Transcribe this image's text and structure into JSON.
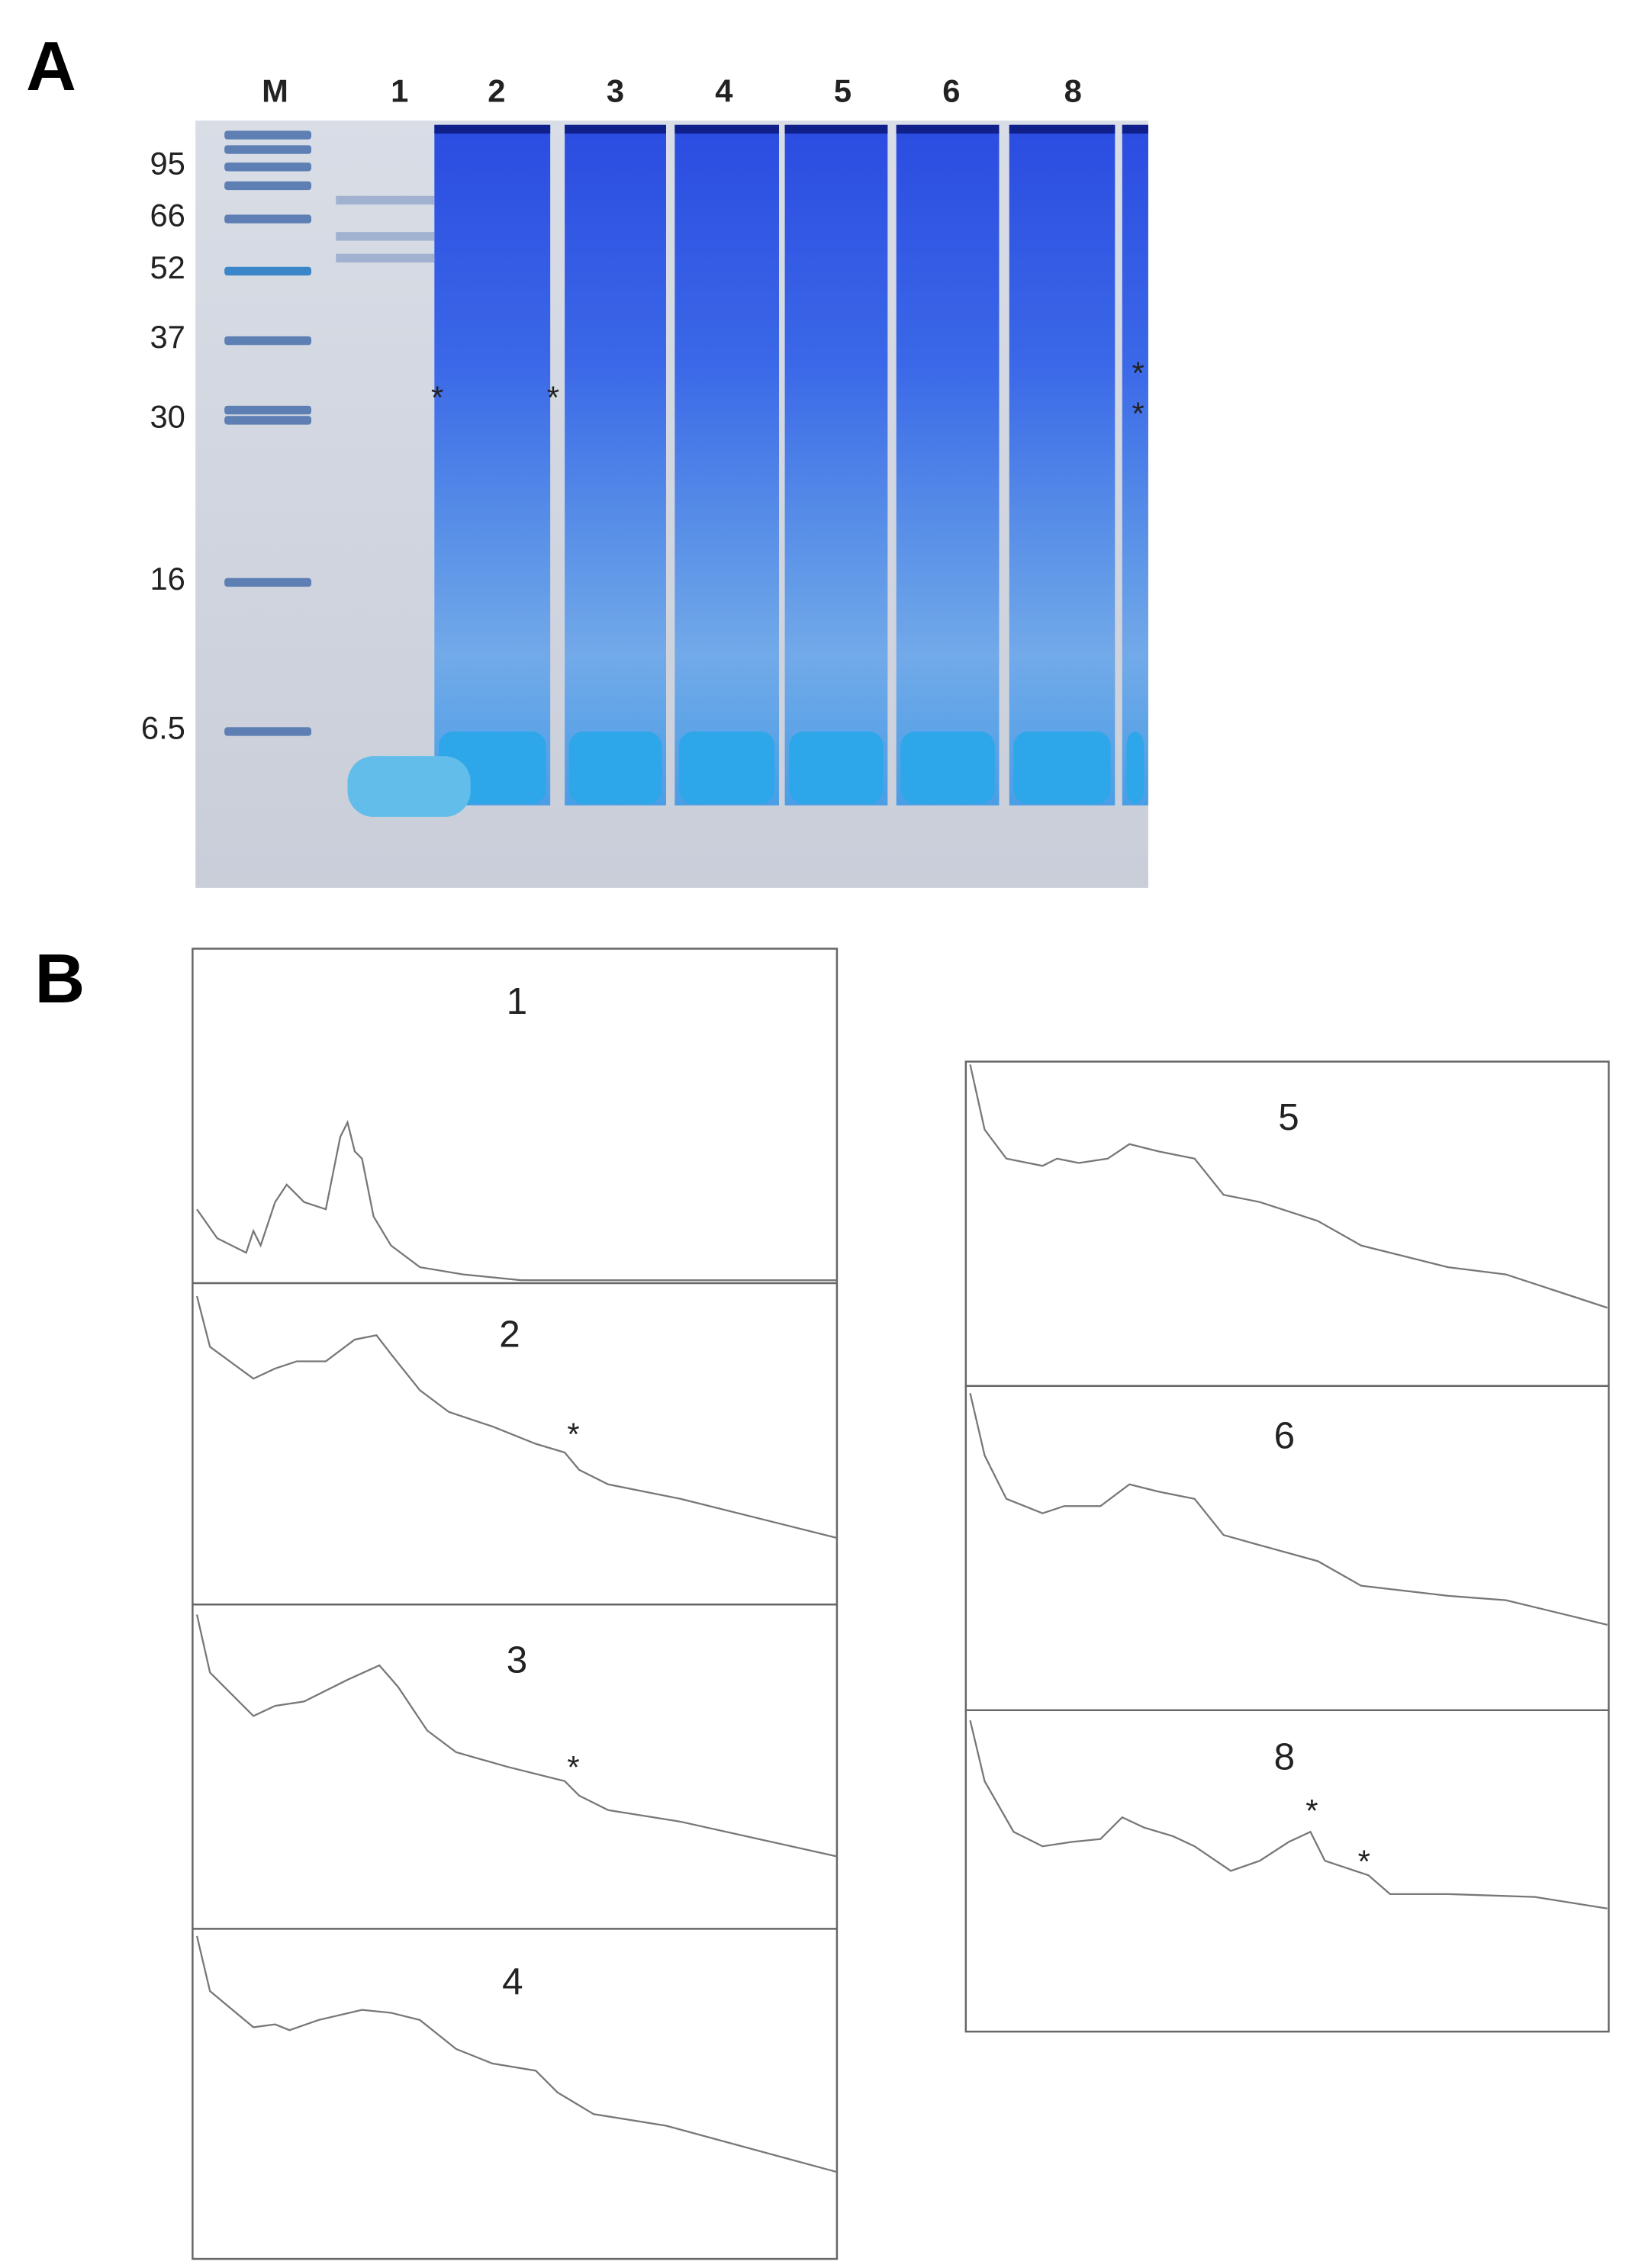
{
  "panel_a": {
    "label": "A",
    "lanes": [
      "M",
      "1",
      "2",
      "3",
      "4",
      "5",
      "6",
      "8"
    ],
    "markers": [
      "95",
      "66",
      "52",
      "37",
      "30",
      "16",
      "6.5"
    ],
    "band_marks": [
      "*",
      "*",
      "*",
      "*"
    ]
  },
  "panel_b": {
    "label": "B",
    "traces": [
      {
        "label": "1",
        "marks": []
      },
      {
        "label": "2",
        "marks": [
          "*"
        ]
      },
      {
        "label": "3",
        "marks": [
          "*"
        ]
      },
      {
        "label": "4",
        "marks": []
      },
      {
        "label": "5",
        "marks": []
      },
      {
        "label": "6",
        "marks": []
      },
      {
        "label": "8",
        "marks": [
          "*",
          "*"
        ]
      }
    ]
  }
}
